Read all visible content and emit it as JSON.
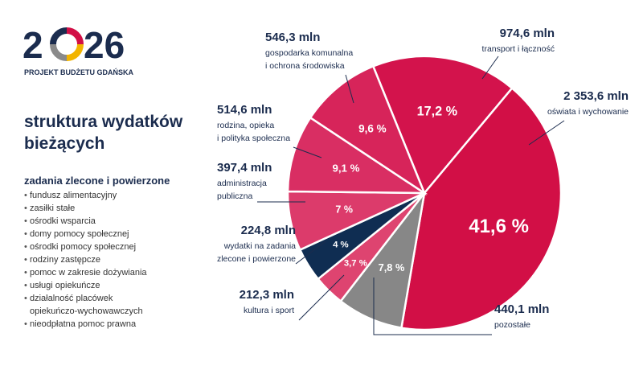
{
  "logo": {
    "left": "2",
    "right": "26",
    "caption": "PROJEKT BUDŻETU GDAŃSKA"
  },
  "sidebar": {
    "title_lines": [
      "struktura wydatków",
      "bieżących"
    ],
    "subtitle": "zadania zlecone i powierzone",
    "items": [
      [
        "fundusz alimentacyjny"
      ],
      [
        "zasiłki stałe"
      ],
      [
        "ośrodki wsparcia"
      ],
      [
        "domy pomocy społecznej"
      ],
      [
        "ośrodki pomocy społecznej"
      ],
      [
        "rodziny zastępcze"
      ],
      [
        "pomoc w zakresie dożywiania"
      ],
      [
        "usługi opiekuńcze"
      ],
      [
        "działalność placówek",
        "opiekuńczo-wychowawczych"
      ],
      [
        "nieodpłatna pomoc prawna"
      ]
    ]
  },
  "chart_data": {
    "type": "pie",
    "categories": [
      "transport",
      "oświata",
      "pozostałe",
      "kultura",
      "wydatki",
      "administracja",
      "rodzina",
      "gospodarka"
    ],
    "series": [
      {
        "values": [
          17.2,
          41.6,
          7.8,
          3.7,
          4,
          7,
          9.1,
          9.6
        ],
        "value_labels": [
          "17,2 %",
          "41,6 %",
          "7,8 %",
          "3,7 %",
          "4 %",
          "7 %",
          "9,1 %",
          "9,6 %"
        ],
        "colors": [
          "#d3134c",
          "#d20f46",
          "#878787",
          "#de4470",
          "#0f2d52",
          "#dc3b6b",
          "#d92e63",
          "#d7245a"
        ]
      }
    ],
    "amounts": [
      974.6,
      2353.6,
      440.1,
      212.3,
      224.8,
      397.4,
      514.6,
      546.3
    ],
    "amount_labels": [
      "974,6 mln",
      "2 353,6 mln",
      "440,1 mln",
      "212,3 mln",
      "224,8 mln",
      "397,4 mln",
      "514,6 mln",
      "546,3 mln"
    ],
    "descriptions": [
      [
        "transport i łączność"
      ],
      [
        "oświata i wychowanie"
      ],
      [
        "pozostałe"
      ],
      [
        "kultura i sport"
      ],
      [
        "wydatki na zadania",
        "zlecone i powierzone"
      ],
      [
        "administracja",
        "publiczna"
      ],
      [
        "rodzina, opieka",
        "i polityka społeczna"
      ],
      [
        "gospodarka komunalna",
        "i ochrona środowiska"
      ]
    ]
  }
}
